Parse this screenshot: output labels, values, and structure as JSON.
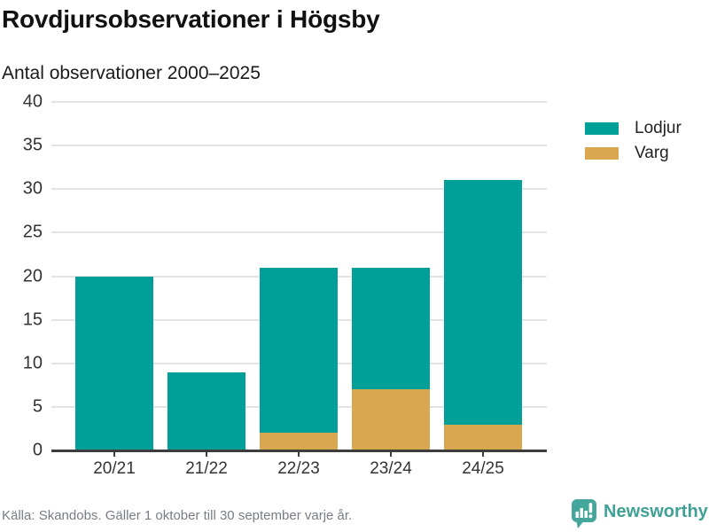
{
  "header": {
    "title": "Rovdjursobservationer i Högsby",
    "subtitle": "Antal observationer 2000–2025"
  },
  "chart_data": {
    "type": "bar",
    "stacked": true,
    "categories": [
      "20/21",
      "21/22",
      "22/23",
      "23/24",
      "24/25"
    ],
    "series": [
      {
        "name": "Lodjur",
        "color": "#00A099",
        "values": [
          20,
          9,
          19,
          14,
          28
        ]
      },
      {
        "name": "Varg",
        "color": "#D9A74F",
        "values": [
          0,
          0,
          2,
          7,
          3
        ]
      }
    ],
    "totals": [
      20,
      9,
      21,
      21,
      31
    ],
    "title": "Rovdjursobservationer i Högsby",
    "subtitle": "Antal observationer 2000–2025",
    "xlabel": "",
    "ylabel": "",
    "ylim": [
      0,
      40
    ],
    "ytick_step": 5,
    "grid": true,
    "legend_position": "right",
    "gridline_color": "#e3e3e3",
    "axis_color": "#3d3d3d",
    "tick_label_color": "#333333"
  },
  "footer": {
    "source": "Källa: Skandobs. Gäller 1 oktober till 30 september varje år.",
    "brand": {
      "name": "Newsworthy",
      "text_color": "#3FA096",
      "icon_color": "#45A79C"
    }
  }
}
